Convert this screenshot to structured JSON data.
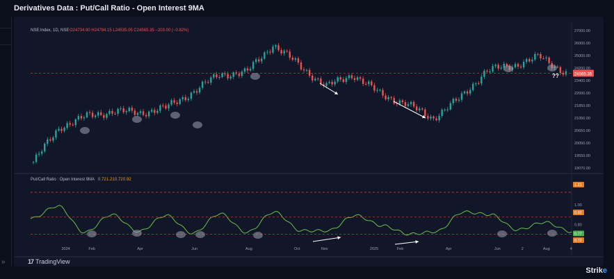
{
  "page": {
    "title": "Derivatives Data : Put/Call Ratio - Open Interest 9MA"
  },
  "watermark": {
    "label": "TradingView",
    "mark": "17"
  },
  "brand": {
    "text_a": "Stri",
    "text_b": "k",
    "text_c": "e"
  },
  "leftbar": {
    "chevron": "»"
  },
  "colors": {
    "up": "#26a69a",
    "down": "#ef5350",
    "pcr_line": "#6cc04a",
    "bg": "#121629",
    "dash": "#b5423c"
  },
  "chart_data": [
    {
      "type": "line",
      "title": "",
      "legend": {
        "symbol": "NSE:Index, 1D, NSE",
        "ohlc": "O24734.90  H24784.15  L24535.05  C24565.35  −203.00 (−0.82%)"
      },
      "ylim": [
        19000,
        27000
      ],
      "y_ticks": [
        "27000.00",
        "26000.00",
        "25000.00",
        "24200.00",
        "23400.00",
        "22600.00",
        "21850.00",
        "21050.00",
        "20650.00",
        "20050.00",
        "19550.00",
        "19070.00"
      ],
      "last_price_label": "24565.35",
      "x_ticks": [
        "2024",
        "Feb",
        "Apr",
        "Jun",
        "Aug",
        "Oct",
        "Nov",
        "2025",
        "Feb",
        "Apr",
        "Jun",
        "2",
        "Aug",
        "4"
      ],
      "series": [
        {
          "x": [
            "2023-12",
            "2024-01",
            "2024-02",
            "2024-03",
            "2024-04",
            "2024-05",
            "2024-06",
            "2024-07",
            "2024-08",
            "2024-09",
            "2024-10",
            "2024-11",
            "2024-12",
            "2025-01",
            "2025-02",
            "2025-03",
            "2025-04",
            "2025-05",
            "2025-06",
            "2025-07",
            "2025-08"
          ],
          "values": [
            19500,
            21500,
            22100,
            22400,
            22300,
            22600,
            23500,
            24500,
            24600,
            26200,
            25000,
            23800,
            24500,
            23400,
            22800,
            22000,
            23100,
            24700,
            25000,
            25500,
            24600
          ]
        }
      ],
      "annotations": [
        "??"
      ]
    },
    {
      "type": "line",
      "title": "",
      "legend": {
        "label": "Put/Call Ratio : Open Interest 9MA",
        "values": [
          "0.72",
          "1.21",
          "0.72",
          "0.92"
        ]
      },
      "ylim": [
        0.65,
        1.3
      ],
      "y_ticks": [
        "1.21",
        "1.00",
        "0.92",
        "0.80",
        "0.77",
        "0.72"
      ],
      "x_ticks": [
        "2024",
        "Feb",
        "Apr",
        "Jun",
        "Aug",
        "Oct",
        "Nov",
        "2025",
        "Feb",
        "Apr",
        "Jun",
        "2",
        "Aug",
        "4"
      ],
      "series": [
        {
          "x": [
            "2023-12",
            "2024-01",
            "2024-02",
            "2024-03",
            "2024-04",
            "2024-05",
            "2024-06",
            "2024-07",
            "2024-08",
            "2024-09",
            "2024-10",
            "2024-11",
            "2024-12",
            "2025-01",
            "2025-02",
            "2025-03",
            "2025-04",
            "2025-05",
            "2025-06",
            "2025-07",
            "2025-08"
          ],
          "values": [
            0.9,
            1.05,
            0.74,
            0.95,
            0.75,
            0.94,
            0.73,
            0.96,
            0.74,
            0.98,
            0.76,
            0.76,
            0.94,
            0.82,
            0.72,
            0.75,
            0.98,
            0.95,
            0.77,
            0.86,
            0.75
          ]
        }
      ]
    }
  ]
}
